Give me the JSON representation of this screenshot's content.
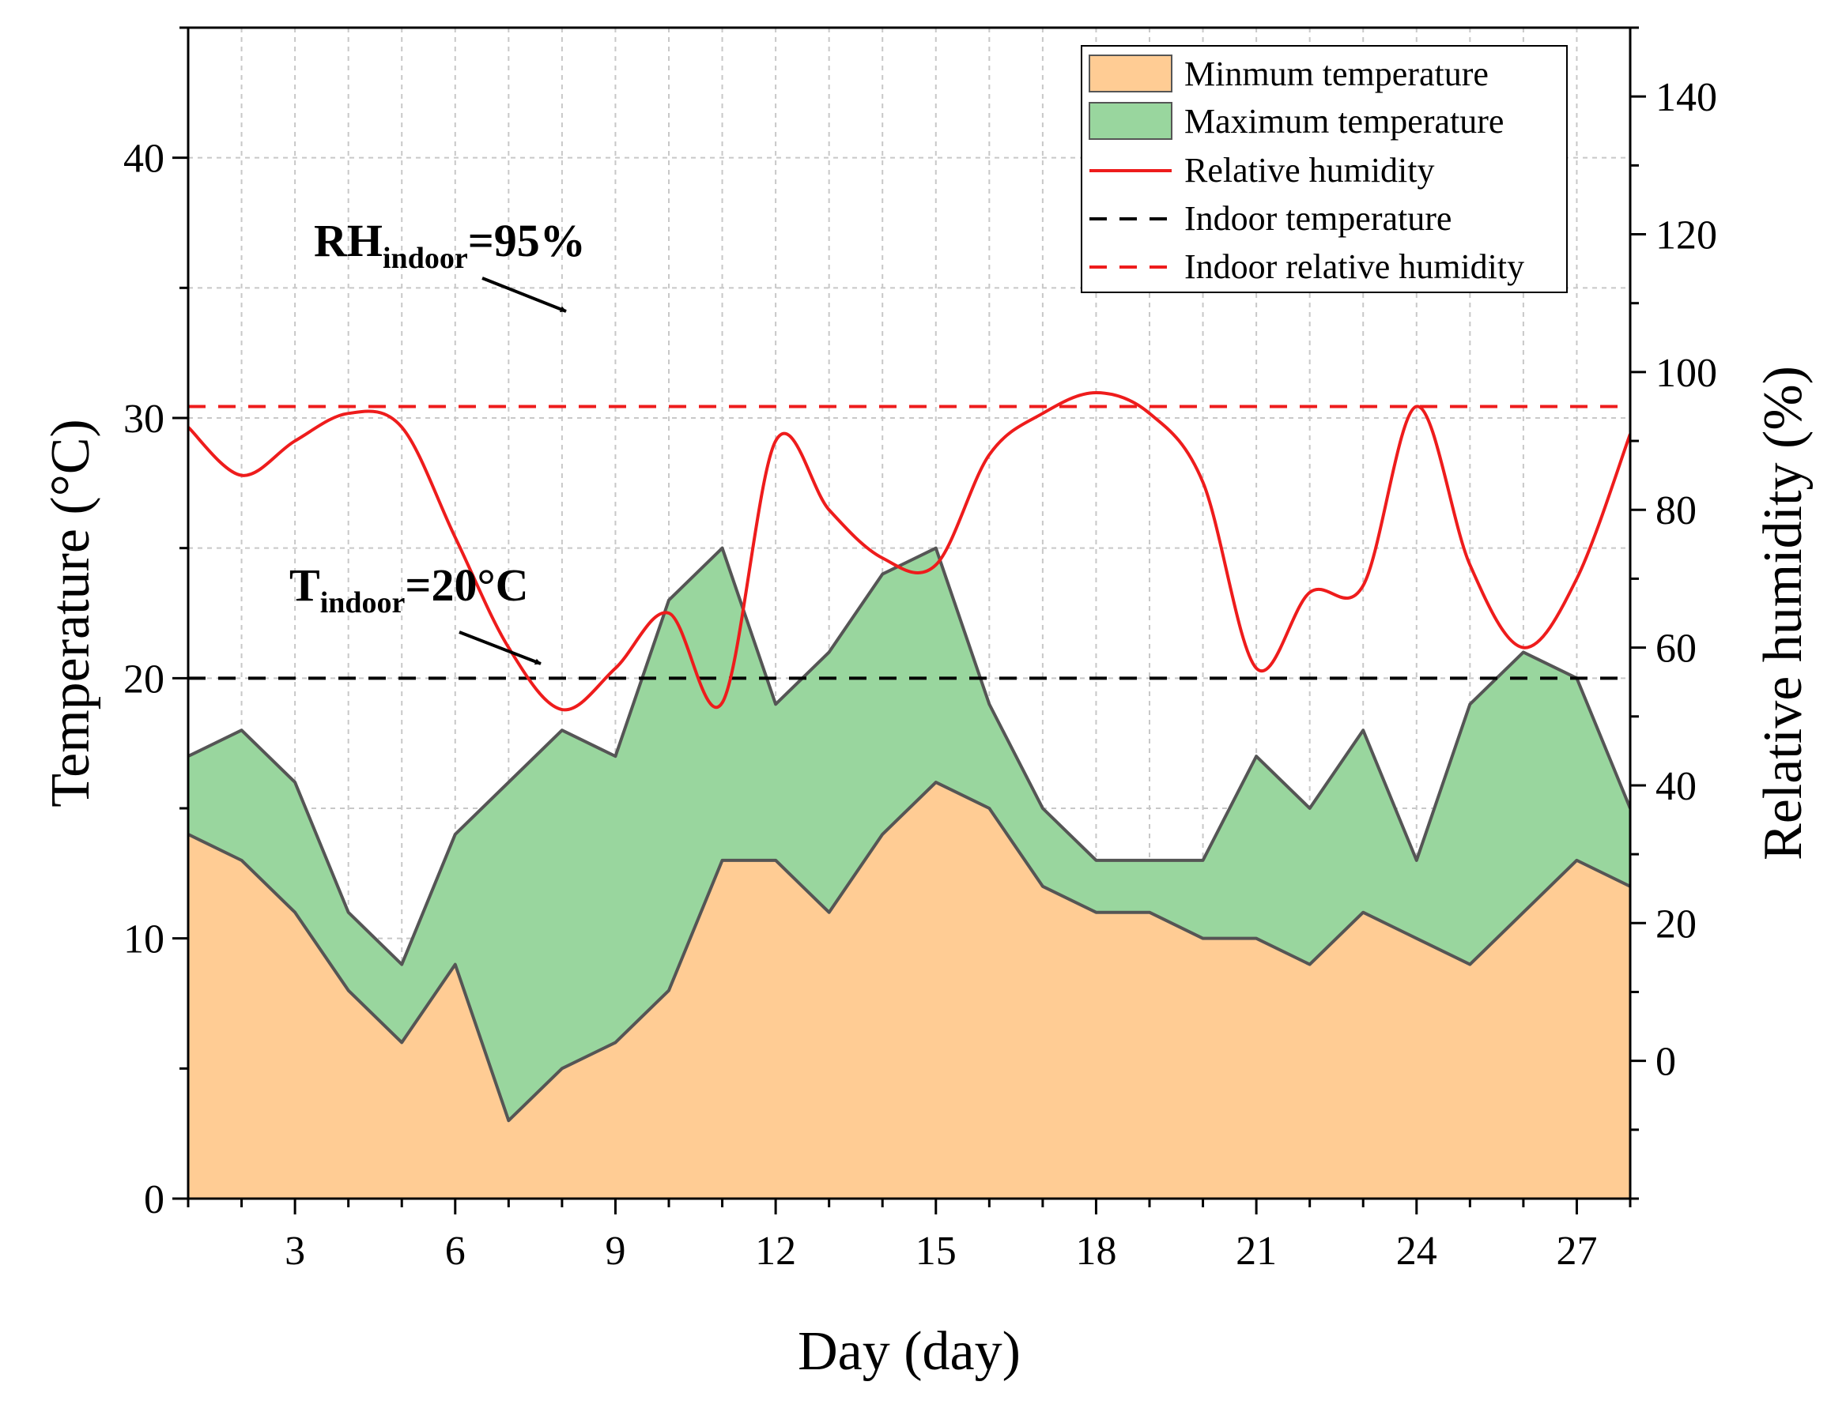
{
  "chart_data": {
    "type": "area",
    "x": [
      1,
      2,
      3,
      4,
      5,
      6,
      7,
      8,
      9,
      10,
      11,
      12,
      13,
      14,
      15,
      16,
      17,
      18,
      19,
      20,
      21,
      22,
      23,
      24,
      25,
      26,
      27,
      28
    ],
    "series": [
      {
        "name": "Minmum temperature",
        "axis": "left",
        "style": "filled-area",
        "values": [
          14,
          13,
          11,
          8,
          6,
          9,
          3,
          5,
          6,
          8,
          13,
          13,
          11,
          14,
          16,
          15,
          12,
          11,
          11,
          10,
          10,
          9,
          11,
          10,
          9,
          11,
          13,
          12
        ]
      },
      {
        "name": "Maximum temperature",
        "axis": "left",
        "style": "filled-area",
        "values": [
          17,
          18,
          16,
          11,
          9,
          14,
          16,
          18,
          17,
          23,
          25,
          19,
          21,
          24,
          25,
          19,
          15,
          13,
          13,
          13,
          17,
          15,
          18,
          13,
          19,
          21,
          20,
          15
        ]
      },
      {
        "name": "Relative humidity",
        "axis": "right",
        "style": "smooth-line",
        "values": [
          92,
          85,
          90,
          94,
          92,
          76,
          60,
          51,
          57,
          65,
          52,
          90,
          80,
          73,
          72,
          88,
          94,
          97,
          94,
          84,
          57,
          68,
          69,
          95,
          72,
          60,
          70,
          91
        ]
      }
    ],
    "reference_lines": [
      {
        "name": "Indoor temperature",
        "axis": "left",
        "value": 20
      },
      {
        "name": "Indoor relative humidity",
        "axis": "right",
        "value": 95
      }
    ],
    "xlabel": "Day (day)",
    "ylabel": "Temperature (°C)",
    "y2label": "Relative humidity (%)",
    "xlim": [
      1,
      28
    ],
    "ylim": [
      0,
      45
    ],
    "y2lim": [
      -20,
      150
    ],
    "xticks": [
      3,
      6,
      9,
      12,
      15,
      18,
      21,
      24,
      27
    ],
    "yticks": [
      0,
      10,
      20,
      30,
      40
    ],
    "y2ticks": [
      0,
      20,
      40,
      60,
      80,
      100,
      120,
      140
    ],
    "grid": true,
    "legend_position": "top-right",
    "annotations": [
      {
        "base": "RH",
        "sub": "indoor",
        "rest": "=95%"
      },
      {
        "base": "T",
        "sub": "indoor",
        "rest": "=20°C"
      }
    ],
    "colors": {
      "min_fill": "#FFCC94",
      "max_fill": "#99D69E",
      "outline": "#555555",
      "humidity": "#EE1C1C",
      "indoor_temp": "#000000",
      "indoor_rh": "#EE1C1C",
      "grid": "#C8C8C8"
    }
  }
}
